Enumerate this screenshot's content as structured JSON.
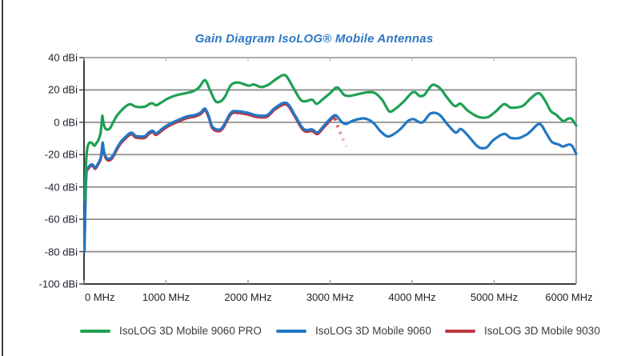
{
  "title": "Gain Diagram IsoLOG® Mobile Antennas",
  "legend": {
    "items": [
      {
        "label": "IsoLOG 3D Mobile 9060 PRO",
        "color": "#1fa053"
      },
      {
        "label": "IsoLOG 3D Mobile 9060",
        "color": "#2277c4"
      },
      {
        "label": "IsoLOG 3D Mobile 9030",
        "color": "#bb3540"
      }
    ]
  },
  "chart_data": {
    "type": "line",
    "title": "Gain Diagram IsoLOG® Mobile Antennas",
    "xlabel": "",
    "ylabel": "",
    "x_unit": "MHz",
    "y_unit": "dBi",
    "xlim": [
      0,
      6000
    ],
    "ylim": [
      -100,
      40
    ],
    "grid": "horizontal",
    "legend_position": "bottom",
    "x_ticks": [
      {
        "value": 0,
        "label": "0 MHz"
      },
      {
        "value": 1000,
        "label": "1000 MHz"
      },
      {
        "value": 2000,
        "label": "2000 MHz"
      },
      {
        "value": 3000,
        "label": "3000 MHz"
      },
      {
        "value": 4000,
        "label": "4000 MHz"
      },
      {
        "value": 5000,
        "label": "5000 MHz"
      },
      {
        "value": 6000,
        "label": "6000 MHz"
      }
    ],
    "y_ticks": [
      {
        "value": 40,
        "label": "40 dBi"
      },
      {
        "value": 20,
        "label": "20 dBi"
      },
      {
        "value": 0,
        "label": "0 dBi"
      },
      {
        "value": -20,
        "label": "-20 dBi"
      },
      {
        "value": -40,
        "label": "-40 dBi"
      },
      {
        "value": -60,
        "label": "-60 dBi"
      },
      {
        "value": -80,
        "label": "-80 dBi"
      },
      {
        "value": -100,
        "label": "-100 dBi"
      }
    ],
    "series": [
      {
        "name": "IsoLOG 3D Mobile 9030",
        "color": "#bb3540",
        "style": "solid",
        "points": [
          [
            5,
            -80
          ],
          [
            12,
            -62
          ],
          [
            20,
            -43
          ],
          [
            30,
            -31
          ],
          [
            45,
            -29.3
          ],
          [
            65,
            -27.8
          ],
          [
            90,
            -26.8
          ],
          [
            110,
            -27.3
          ],
          [
            135,
            -28.8
          ],
          [
            165,
            -26.8
          ],
          [
            200,
            -23.3
          ],
          [
            215,
            -19
          ],
          [
            226,
            -13.5
          ],
          [
            240,
            -18
          ],
          [
            258,
            -21.5
          ],
          [
            290,
            -23.5
          ],
          [
            330,
            -23
          ],
          [
            365,
            -20.5
          ],
          [
            400,
            -17
          ],
          [
            450,
            -13
          ],
          [
            500,
            -10.3
          ],
          [
            550,
            -8
          ],
          [
            585,
            -7.5
          ],
          [
            630,
            -9.4
          ],
          [
            695,
            -9.8
          ],
          [
            745,
            -9.5
          ],
          [
            795,
            -7
          ],
          [
            840,
            -6.2
          ],
          [
            880,
            -7.8
          ],
          [
            965,
            -4.5
          ],
          [
            1045,
            -2
          ],
          [
            1120,
            -0.2
          ],
          [
            1250,
            2.5
          ],
          [
            1350,
            3.5
          ],
          [
            1420,
            5
          ],
          [
            1475,
            7.4
          ],
          [
            1520,
            3
          ],
          [
            1560,
            -3.3
          ],
          [
            1625,
            -5.5
          ],
          [
            1690,
            -4
          ],
          [
            1790,
            4.9
          ],
          [
            1870,
            5.8
          ],
          [
            2000,
            4.8
          ],
          [
            2100,
            3.3
          ],
          [
            2230,
            3.4
          ],
          [
            2330,
            8
          ],
          [
            2465,
            11
          ],
          [
            2570,
            3.5
          ],
          [
            2650,
            -3.5
          ],
          [
            2705,
            -5.8
          ],
          [
            2780,
            -5.4
          ],
          [
            2845,
            -7.3
          ],
          [
            2910,
            -4
          ],
          [
            3010,
            1.6
          ],
          [
            3055,
            3.5
          ]
        ],
        "dashed_fading_tail": [
          [
            3060,
            2.5
          ],
          [
            3090,
            -2
          ],
          [
            3125,
            -6.5
          ],
          [
            3155,
            -10
          ],
          [
            3185,
            -13.5
          ],
          [
            3210,
            -16.5
          ]
        ]
      },
      {
        "name": "IsoLOG 3D Mobile 9060",
        "color": "#2277c4",
        "style": "solid",
        "points": [
          [
            5,
            -80
          ],
          [
            12,
            -62
          ],
          [
            20,
            -42
          ],
          [
            30,
            -30
          ],
          [
            45,
            -28.5
          ],
          [
            65,
            -27
          ],
          [
            90,
            -26
          ],
          [
            110,
            -26.5
          ],
          [
            135,
            -28
          ],
          [
            165,
            -26
          ],
          [
            200,
            -22.5
          ],
          [
            215,
            -18
          ],
          [
            226,
            -12.5
          ],
          [
            240,
            -17
          ],
          [
            258,
            -20.5
          ],
          [
            290,
            -22.5
          ],
          [
            330,
            -22
          ],
          [
            365,
            -19.5
          ],
          [
            400,
            -16
          ],
          [
            450,
            -12
          ],
          [
            500,
            -9.3
          ],
          [
            550,
            -7
          ],
          [
            585,
            -6.5
          ],
          [
            630,
            -8.4
          ],
          [
            695,
            -8.8
          ],
          [
            745,
            -8.5
          ],
          [
            795,
            -6
          ],
          [
            840,
            -5.2
          ],
          [
            880,
            -6.8
          ],
          [
            965,
            -3.5
          ],
          [
            1045,
            -1
          ],
          [
            1120,
            0.8
          ],
          [
            1250,
            3.5
          ],
          [
            1350,
            4.5
          ],
          [
            1420,
            6
          ],
          [
            1475,
            8.4
          ],
          [
            1520,
            4
          ],
          [
            1560,
            -2.3
          ],
          [
            1625,
            -4.5
          ],
          [
            1690,
            -3
          ],
          [
            1790,
            5.9
          ],
          [
            1870,
            6.8
          ],
          [
            2000,
            5.8
          ],
          [
            2100,
            4.3
          ],
          [
            2230,
            4.4
          ],
          [
            2330,
            9
          ],
          [
            2465,
            12
          ],
          [
            2570,
            4.5
          ],
          [
            2650,
            -2.5
          ],
          [
            2705,
            -4.8
          ],
          [
            2780,
            -4.4
          ],
          [
            2845,
            -6.3
          ],
          [
            2910,
            -3
          ],
          [
            3010,
            2.6
          ],
          [
            3070,
            4.3
          ],
          [
            3140,
            0.3
          ],
          [
            3195,
            -1
          ],
          [
            3280,
            1
          ],
          [
            3400,
            2.4
          ],
          [
            3480,
            1.3
          ],
          [
            3540,
            -1
          ],
          [
            3610,
            -5.3
          ],
          [
            3690,
            -8.6
          ],
          [
            3760,
            -7.8
          ],
          [
            3855,
            -4.3
          ],
          [
            3950,
            0.8
          ],
          [
            4020,
            1.9
          ],
          [
            4090,
            0
          ],
          [
            4140,
            0.4
          ],
          [
            4215,
            5.1
          ],
          [
            4280,
            5.8
          ],
          [
            4345,
            4.1
          ],
          [
            4435,
            -1.5
          ],
          [
            4530,
            -6.3
          ],
          [
            4595,
            -4.2
          ],
          [
            4680,
            -8.2
          ],
          [
            4805,
            -15.2
          ],
          [
            4905,
            -15.6
          ],
          [
            4990,
            -11
          ],
          [
            5120,
            -7.2
          ],
          [
            5200,
            -9.6
          ],
          [
            5300,
            -9.8
          ],
          [
            5395,
            -7.6
          ],
          [
            5450,
            -5.3
          ],
          [
            5555,
            -1
          ],
          [
            5640,
            -7.2
          ],
          [
            5705,
            -12.2
          ],
          [
            5790,
            -13.8
          ],
          [
            5840,
            -15
          ],
          [
            5905,
            -13.8
          ],
          [
            5950,
            -14.6
          ],
          [
            6000,
            -19.5
          ]
        ]
      },
      {
        "name": "IsoLOG 3D Mobile 9060 PRO",
        "color": "#1fa053",
        "style": "solid",
        "points": [
          [
            10,
            -48
          ],
          [
            18,
            -34
          ],
          [
            28,
            -22
          ],
          [
            40,
            -16
          ],
          [
            55,
            -13.5
          ],
          [
            75,
            -12.5
          ],
          [
            100,
            -13
          ],
          [
            125,
            -14.5
          ],
          [
            150,
            -13
          ],
          [
            175,
            -11
          ],
          [
            200,
            -7
          ],
          [
            212,
            -2
          ],
          [
            222,
            4
          ],
          [
            232,
            1
          ],
          [
            245,
            -2
          ],
          [
            262,
            -4
          ],
          [
            290,
            -4.5
          ],
          [
            320,
            -3.5
          ],
          [
            355,
            0
          ],
          [
            400,
            4
          ],
          [
            450,
            7
          ],
          [
            500,
            9.5
          ],
          [
            545,
            11
          ],
          [
            580,
            11
          ],
          [
            620,
            9.8
          ],
          [
            680,
            9.4
          ],
          [
            745,
            9.7
          ],
          [
            800,
            11.4
          ],
          [
            835,
            11.7
          ],
          [
            880,
            10.5
          ],
          [
            935,
            12
          ],
          [
            1015,
            14.5
          ],
          [
            1110,
            16.5
          ],
          [
            1220,
            17.8
          ],
          [
            1320,
            19
          ],
          [
            1400,
            21.5
          ],
          [
            1475,
            26
          ],
          [
            1535,
            20
          ],
          [
            1600,
            13.2
          ],
          [
            1660,
            12.8
          ],
          [
            1720,
            16
          ],
          [
            1790,
            23
          ],
          [
            1870,
            24.6
          ],
          [
            1950,
            23.6
          ],
          [
            2010,
            22.6
          ],
          [
            2070,
            23.4
          ],
          [
            2160,
            21.8
          ],
          [
            2250,
            23.3
          ],
          [
            2350,
            27
          ],
          [
            2455,
            29
          ],
          [
            2555,
            21
          ],
          [
            2640,
            14
          ],
          [
            2700,
            13
          ],
          [
            2780,
            14
          ],
          [
            2835,
            11.4
          ],
          [
            2905,
            14
          ],
          [
            3000,
            18
          ],
          [
            3085,
            21.5
          ],
          [
            3170,
            17
          ],
          [
            3240,
            16.3
          ],
          [
            3340,
            17.4
          ],
          [
            3460,
            18.6
          ],
          [
            3550,
            18
          ],
          [
            3640,
            13.5
          ],
          [
            3720,
            6.8
          ],
          [
            3800,
            8.5
          ],
          [
            3900,
            13
          ],
          [
            3990,
            18
          ],
          [
            4040,
            18.5
          ],
          [
            4090,
            16.3
          ],
          [
            4150,
            17
          ],
          [
            4230,
            22.5
          ],
          [
            4280,
            23
          ],
          [
            4350,
            20.5
          ],
          [
            4430,
            15
          ],
          [
            4520,
            10
          ],
          [
            4590,
            11.5
          ],
          [
            4670,
            7.5
          ],
          [
            4760,
            4.5
          ],
          [
            4830,
            3
          ],
          [
            4925,
            3.2
          ],
          [
            5025,
            7
          ],
          [
            5120,
            11.2
          ],
          [
            5200,
            9.1
          ],
          [
            5290,
            9.3
          ],
          [
            5360,
            10.5
          ],
          [
            5450,
            15
          ],
          [
            5545,
            18
          ],
          [
            5625,
            13
          ],
          [
            5690,
            7
          ],
          [
            5760,
            4.5
          ],
          [
            5840,
            0.8
          ],
          [
            5905,
            2.3
          ],
          [
            5945,
            2
          ],
          [
            6000,
            -2
          ]
        ]
      }
    ]
  }
}
